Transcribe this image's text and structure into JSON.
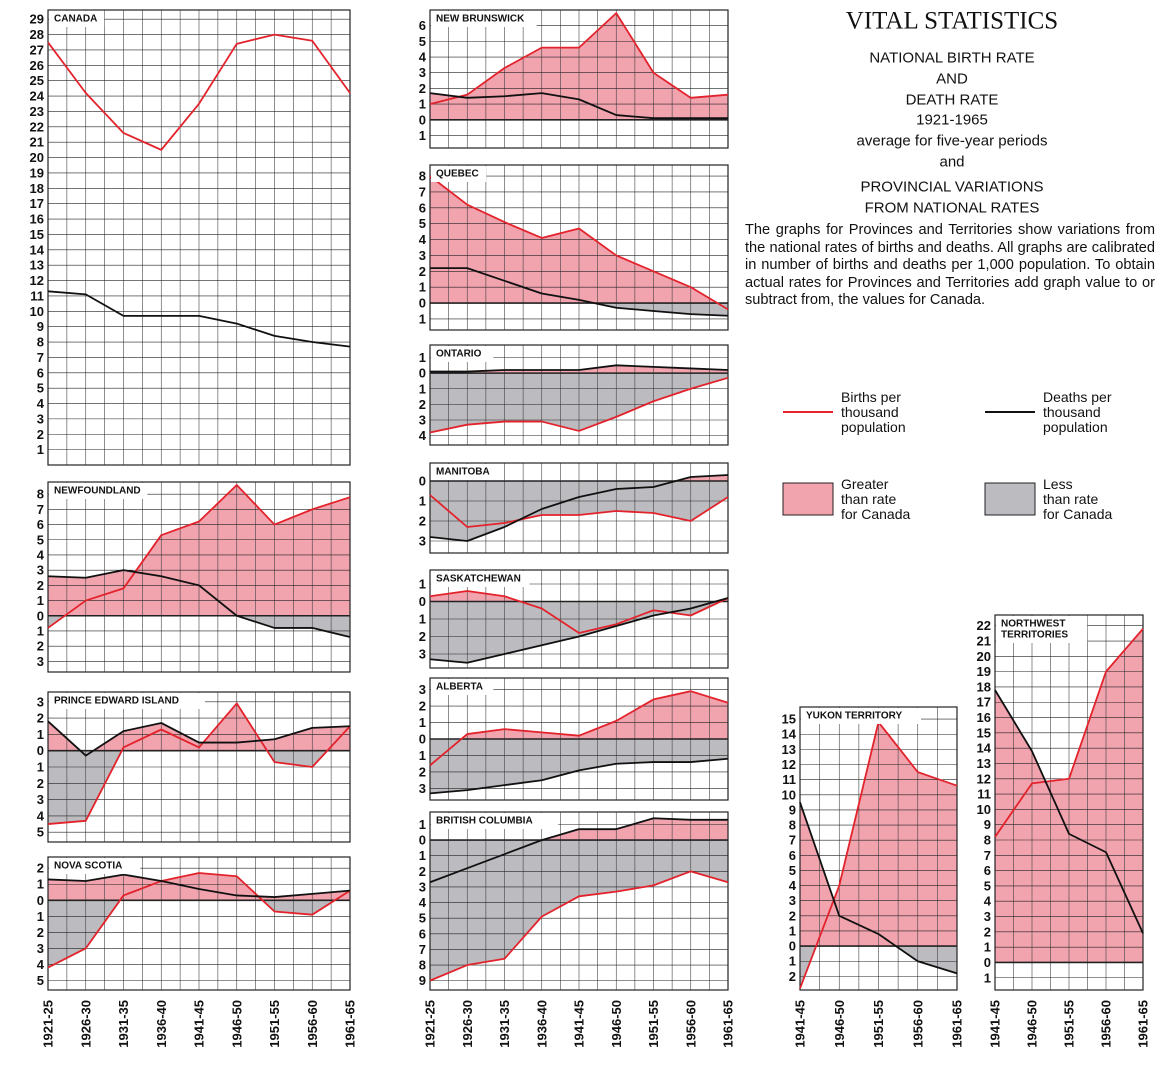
{
  "header": {
    "title": "VITAL STATISTICS",
    "lines": [
      "NATIONAL BIRTH RATE",
      "AND",
      "DEATH RATE",
      "1921-1965",
      "average for five-year periods",
      "and",
      "PROVINCIAL VARIATIONS",
      "FROM NATIONAL RATES"
    ],
    "paragraph": "The graphs for Provinces and Territories show variations from the national rates of births and deaths. All graphs are calibrated in number of births and deaths per 1,000 population. To obtain actual rates for Provinces and Territories add graph value to or subtract from, the values for Canada."
  },
  "legend": [
    {
      "label": [
        "Births per",
        "thousand",
        "population"
      ],
      "color": "#e3232c",
      "kind": "line"
    },
    {
      "label": [
        "Deaths per",
        "thousand",
        "population"
      ],
      "color": "#111111",
      "kind": "line"
    },
    {
      "label": [
        "Greater",
        "than rate",
        "for Canada"
      ],
      "color": "#f1a3ae",
      "kind": "box"
    },
    {
      "label": [
        "Less",
        "than rate",
        "for Canada"
      ],
      "color": "#bcbcc0",
      "kind": "box"
    }
  ],
  "chart_data": [
    {
      "type": "line",
      "title": "CANADA",
      "shading": false,
      "ylim": [
        0,
        29.6
      ],
      "yticks": [
        29,
        28,
        27,
        26,
        25,
        24,
        23,
        22,
        21,
        20,
        19,
        18,
        17,
        16,
        15,
        14,
        13,
        12,
        11,
        10,
        9,
        8,
        7,
        6,
        5,
        4,
        3,
        2,
        1
      ],
      "series": [
        {
          "color": "#e3232c",
          "values": [
            27.5,
            24.2,
            21.6,
            20.5,
            23.5,
            27.4,
            28.0,
            27.6,
            24.2
          ]
        },
        {
          "color": "#111111",
          "values": [
            11.3,
            11.1,
            9.7,
            9.7,
            9.7,
            9.2,
            8.4,
            8.0,
            7.7
          ]
        }
      ]
    },
    {
      "type": "line",
      "title": "NEWFOUNDLAND",
      "shading": true,
      "ylim": [
        -3.7,
        8.8
      ],
      "yticks": [
        8,
        7,
        6,
        5,
        4,
        3,
        2,
        1,
        0,
        {
          "value": -1,
          "label": "1"
        },
        {
          "value": -2,
          "label": "2"
        },
        {
          "value": -3,
          "label": "3"
        }
      ],
      "series": [
        {
          "color": "#e3232c",
          "values": [
            -0.8,
            1.0,
            1.8,
            5.3,
            6.2,
            8.6,
            6.0,
            7.0,
            7.8
          ]
        },
        {
          "color": "#111111",
          "values": [
            2.6,
            2.5,
            3.0,
            2.6,
            2.0,
            0,
            -0.8,
            -0.8,
            -1.4
          ]
        }
      ]
    },
    {
      "type": "line",
      "title": "PRINCE EDWARD ISLAND",
      "shading": true,
      "ylim": [
        -5.6,
        3.6
      ],
      "yticks": [
        3,
        2,
        1,
        0,
        {
          "value": -1,
          "label": "1"
        },
        {
          "value": -2,
          "label": "2"
        },
        {
          "value": -3,
          "label": "3"
        },
        {
          "value": -4,
          "label": "4"
        },
        {
          "value": -5,
          "label": "5"
        }
      ],
      "series": [
        {
          "color": "#e3232c",
          "values": [
            -4.5,
            -4.3,
            0.2,
            1.3,
            0.2,
            2.9,
            -0.7,
            -1.0,
            1.5
          ]
        },
        {
          "color": "#111111",
          "values": [
            1.8,
            -0.3,
            1.2,
            1.7,
            0.5,
            0.5,
            0.7,
            1.4,
            1.5
          ]
        }
      ]
    },
    {
      "type": "line",
      "title": "NOVA SCOTIA",
      "shading": true,
      "ylim": [
        -5.6,
        2.7
      ],
      "categories": [
        "1921-25",
        "1926-30",
        "1931-35",
        "1936-40",
        "1941-45",
        "1946-50",
        "1951-55",
        "1956-60",
        "1961-65"
      ],
      "yticks": [
        2,
        1,
        0,
        {
          "value": -1,
          "label": "1"
        },
        {
          "value": -2,
          "label": "2"
        },
        {
          "value": -3,
          "label": "3"
        },
        {
          "value": -4,
          "label": "4"
        },
        {
          "value": -5,
          "label": "5"
        }
      ],
      "series": [
        {
          "color": "#e3232c",
          "values": [
            -4.2,
            -3.0,
            0.3,
            1.2,
            1.7,
            1.5,
            -0.7,
            -0.9,
            0.6
          ]
        },
        {
          "color": "#111111",
          "values": [
            1.3,
            1.2,
            1.6,
            1.2,
            0.7,
            0.3,
            0.2,
            0.4,
            0.6
          ]
        }
      ]
    },
    {
      "type": "line",
      "title": "NEW BRUNSWICK",
      "shading": true,
      "ylim": [
        -1.8,
        7.0
      ],
      "yticks": [
        6,
        5,
        4,
        3,
        2,
        1,
        0,
        {
          "value": -1,
          "label": "1"
        }
      ],
      "series": [
        {
          "color": "#e3232c",
          "values": [
            1.0,
            1.6,
            3.3,
            4.6,
            4.6,
            6.8,
            3.0,
            1.4,
            1.6
          ]
        },
        {
          "color": "#111111",
          "values": [
            1.7,
            1.4,
            1.5,
            1.7,
            1.3,
            0.3,
            0.1,
            0.1,
            0.1
          ]
        }
      ]
    },
    {
      "type": "line",
      "title": "QUEBEC",
      "shading": true,
      "ylim": [
        -1.7,
        8.7
      ],
      "yticks": [
        8,
        7,
        6,
        5,
        4,
        3,
        2,
        1,
        0,
        {
          "value": -1,
          "label": "1"
        }
      ],
      "series": [
        {
          "color": "#e3232c",
          "values": [
            8.0,
            6.2,
            5.1,
            4.1,
            4.7,
            3.0,
            2.0,
            1.0,
            -0.4
          ]
        },
        {
          "color": "#111111",
          "values": [
            2.2,
            2.2,
            1.4,
            0.6,
            0.2,
            -0.3,
            -0.5,
            -0.7,
            -0.8
          ]
        }
      ]
    },
    {
      "type": "line",
      "title": "ONTARIO",
      "shading": true,
      "ylim": [
        -4.6,
        1.8
      ],
      "yticks": [
        1,
        0,
        {
          "value": -1,
          "label": "1"
        },
        {
          "value": -2,
          "label": "2"
        },
        {
          "value": -3,
          "label": "3"
        },
        {
          "value": -4,
          "label": "4"
        }
      ],
      "series": [
        {
          "color": "#e3232c",
          "values": [
            -3.8,
            -3.3,
            -3.1,
            -3.1,
            -3.7,
            -2.8,
            -1.8,
            -1.0,
            -0.3
          ]
        },
        {
          "color": "#111111",
          "values": [
            0.1,
            0.1,
            0.2,
            0.2,
            0.2,
            0.5,
            0.4,
            0.3,
            0.2
          ]
        }
      ]
    },
    {
      "type": "line",
      "title": "MANITOBA",
      "shading": true,
      "ylim": [
        -3.6,
        0.9
      ],
      "yticks": [
        0,
        {
          "value": -1,
          "label": "1"
        },
        {
          "value": -2,
          "label": "2"
        },
        {
          "value": -3,
          "label": "3"
        }
      ],
      "series": [
        {
          "color": "#e3232c",
          "values": [
            -0.7,
            -2.3,
            -2.1,
            -1.7,
            -1.7,
            -1.5,
            -1.6,
            -2.0,
            -0.8
          ]
        },
        {
          "color": "#111111",
          "values": [
            -2.8,
            -3.0,
            -2.3,
            -1.4,
            -0.8,
            -0.4,
            -0.3,
            0.2,
            0.3
          ]
        }
      ]
    },
    {
      "type": "line",
      "title": "SASKATCHEWAN",
      "shading": true,
      "ylim": [
        -3.8,
        1.8
      ],
      "yticks": [
        1,
        0,
        {
          "value": -1,
          "label": "1"
        },
        {
          "value": -2,
          "label": "2"
        },
        {
          "value": -3,
          "label": "3"
        }
      ],
      "series": [
        {
          "color": "#e3232c",
          "values": [
            0.3,
            0.6,
            0.3,
            -0.4,
            -1.8,
            -1.3,
            -0.5,
            -0.8,
            0.2
          ]
        },
        {
          "color": "#111111",
          "values": [
            -3.3,
            -3.5,
            -3.0,
            -2.5,
            -2.0,
            -1.4,
            -0.8,
            -0.4,
            0.2
          ]
        }
      ]
    },
    {
      "type": "line",
      "title": "ALBERTA",
      "shading": true,
      "ylim": [
        -3.7,
        3.7
      ],
      "yticks": [
        3,
        2,
        1,
        0,
        {
          "value": -1,
          "label": "1"
        },
        {
          "value": -2,
          "label": "2"
        },
        {
          "value": -3,
          "label": "3"
        }
      ],
      "series": [
        {
          "color": "#e3232c",
          "values": [
            -1.6,
            0.3,
            0.6,
            0.4,
            0.2,
            1.1,
            2.4,
            2.9,
            2.2
          ]
        },
        {
          "color": "#111111",
          "values": [
            -3.3,
            -3.1,
            -2.8,
            -2.5,
            -1.9,
            -1.5,
            -1.4,
            -1.4,
            -1.2
          ]
        }
      ]
    },
    {
      "type": "line",
      "title": "BRITISH COLUMBIA",
      "shading": true,
      "ylim": [
        -9.6,
        1.8
      ],
      "categories": [
        "1921-25",
        "1926-30",
        "1931-35",
        "1936-40",
        "1941-45",
        "1946-50",
        "1951-55",
        "1956-60",
        "1961-65"
      ],
      "yticks": [
        1,
        0,
        {
          "value": -1,
          "label": "1"
        },
        {
          "value": -2,
          "label": "2"
        },
        {
          "value": -3,
          "label": "3"
        },
        {
          "value": -4,
          "label": "4"
        },
        {
          "value": -5,
          "label": "5"
        },
        {
          "value": -6,
          "label": "6"
        },
        {
          "value": -7,
          "label": "7"
        },
        {
          "value": -8,
          "label": "8"
        },
        {
          "value": -9,
          "label": "9"
        }
      ],
      "series": [
        {
          "color": "#e3232c",
          "values": [
            -9.0,
            -8.0,
            -7.6,
            -4.9,
            -3.6,
            -3.3,
            -2.9,
            -2.0,
            -2.7
          ]
        },
        {
          "color": "#111111",
          "values": [
            -2.7,
            -1.8,
            -0.9,
            0,
            0.7,
            0.7,
            1.4,
            1.3,
            1.3
          ]
        }
      ]
    },
    {
      "type": "line",
      "title": "YUKON TERRITORY",
      "shading": true,
      "ylim": [
        -2.9,
        15.8
      ],
      "categories": [
        "1941-45",
        "1946-50",
        "1951-55",
        "1956-60",
        "1961-65"
      ],
      "yticks": [
        15,
        14,
        13,
        12,
        11,
        10,
        9,
        8,
        7,
        6,
        5,
        4,
        3,
        2,
        1,
        0,
        {
          "value": -1,
          "label": "1"
        },
        {
          "value": -2,
          "label": "2"
        }
      ],
      "series": [
        {
          "color": "#e3232c",
          "values": [
            -2.8,
            4.0,
            14.8,
            11.5,
            10.6
          ]
        },
        {
          "color": "#111111",
          "values": [
            9.5,
            2.0,
            0.8,
            -1.0,
            -1.8
          ]
        }
      ]
    },
    {
      "type": "line",
      "title": [
        "NORTHWEST",
        "TERRITORIES"
      ],
      "shading": true,
      "ylim": [
        -1.8,
        22.7
      ],
      "categories": [
        "1941-45",
        "1946-50",
        "1951-55",
        "1956-60",
        "1961-65"
      ],
      "yticks": [
        22,
        21,
        20,
        19,
        18,
        17,
        16,
        15,
        14,
        13,
        12,
        11,
        10,
        9,
        8,
        7,
        6,
        5,
        4,
        3,
        2,
        1,
        0,
        {
          "value": -1,
          "label": "1"
        }
      ],
      "series": [
        {
          "color": "#e3232c",
          "values": [
            8.2,
            11.7,
            12.0,
            19.0,
            21.8
          ]
        },
        {
          "color": "#111111",
          "values": [
            17.8,
            13.8,
            8.4,
            7.2,
            1.9
          ]
        }
      ]
    }
  ]
}
